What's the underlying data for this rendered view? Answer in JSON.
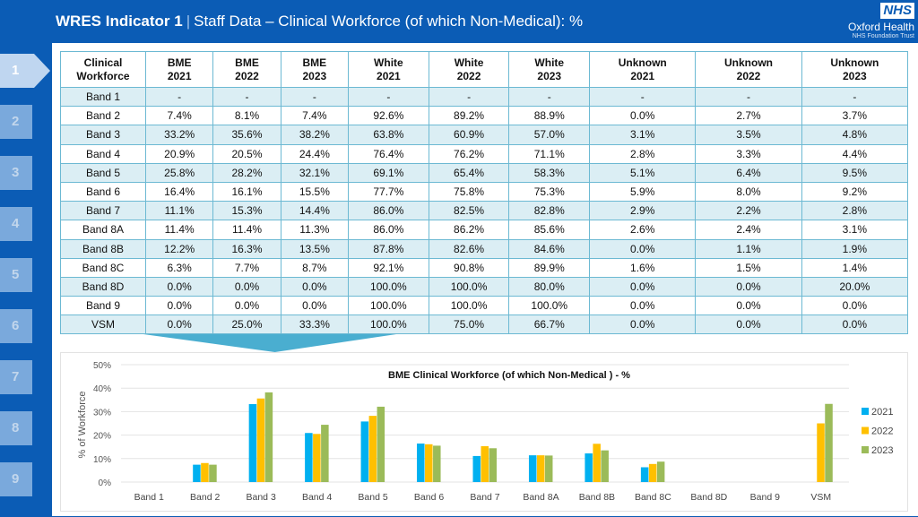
{
  "header": {
    "title_bold": "WRES Indicator 1",
    "separator": "|",
    "title": "Staff Data – Clinical Workforce (of which Non-Medical): %",
    "logo": {
      "nhs": "NHS",
      "org": "Oxford Health",
      "sub": "NHS Foundation Trust"
    }
  },
  "sidebar": {
    "items": [
      "1",
      "2",
      "3",
      "4",
      "5",
      "6",
      "7",
      "8",
      "9"
    ],
    "active": "1"
  },
  "table": {
    "headers": [
      [
        "Clinical",
        "Workforce"
      ],
      [
        "BME",
        "2021"
      ],
      [
        "BME",
        "2022"
      ],
      [
        "BME",
        "2023"
      ],
      [
        "White",
        "2021"
      ],
      [
        "White",
        "2022"
      ],
      [
        "White",
        "2023"
      ],
      [
        "Unknown",
        "2021"
      ],
      [
        "Unknown",
        "2022"
      ],
      [
        "Unknown",
        "2023"
      ]
    ],
    "rows": [
      [
        "Band 1",
        "-",
        "-",
        "-",
        "-",
        "-",
        "-",
        "-",
        "-",
        "-"
      ],
      [
        "Band 2",
        "7.4%",
        "8.1%",
        "7.4%",
        "92.6%",
        "89.2%",
        "88.9%",
        "0.0%",
        "2.7%",
        "3.7%"
      ],
      [
        "Band 3",
        "33.2%",
        "35.6%",
        "38.2%",
        "63.8%",
        "60.9%",
        "57.0%",
        "3.1%",
        "3.5%",
        "4.8%"
      ],
      [
        "Band 4",
        "20.9%",
        "20.5%",
        "24.4%",
        "76.4%",
        "76.2%",
        "71.1%",
        "2.8%",
        "3.3%",
        "4.4%"
      ],
      [
        "Band 5",
        "25.8%",
        "28.2%",
        "32.1%",
        "69.1%",
        "65.4%",
        "58.3%",
        "5.1%",
        "6.4%",
        "9.5%"
      ],
      [
        "Band 6",
        "16.4%",
        "16.1%",
        "15.5%",
        "77.7%",
        "75.8%",
        "75.3%",
        "5.9%",
        "8.0%",
        "9.2%"
      ],
      [
        "Band 7",
        "11.1%",
        "15.3%",
        "14.4%",
        "86.0%",
        "82.5%",
        "82.8%",
        "2.9%",
        "2.2%",
        "2.8%"
      ],
      [
        "Band 8A",
        "11.4%",
        "11.4%",
        "11.3%",
        "86.0%",
        "86.2%",
        "85.6%",
        "2.6%",
        "2.4%",
        "3.1%"
      ],
      [
        "Band 8B",
        "12.2%",
        "16.3%",
        "13.5%",
        "87.8%",
        "82.6%",
        "84.6%",
        "0.0%",
        "1.1%",
        "1.9%"
      ],
      [
        "Band 8C",
        "6.3%",
        "7.7%",
        "8.7%",
        "92.1%",
        "90.8%",
        "89.9%",
        "1.6%",
        "1.5%",
        "1.4%"
      ],
      [
        "Band 8D",
        "0.0%",
        "0.0%",
        "0.0%",
        "100.0%",
        "100.0%",
        "80.0%",
        "0.0%",
        "0.0%",
        "20.0%"
      ],
      [
        "Band 9",
        "0.0%",
        "0.0%",
        "0.0%",
        "100.0%",
        "100.0%",
        "100.0%",
        "0.0%",
        "0.0%",
        "0.0%"
      ],
      [
        "VSM",
        "0.0%",
        "25.0%",
        "33.3%",
        "100.0%",
        "75.0%",
        "66.7%",
        "0.0%",
        "0.0%",
        "0.0%"
      ]
    ]
  },
  "chart_data": {
    "type": "bar",
    "title": "BME Clinical Workforce (of which Non-Medical ) - %",
    "xlabel": "",
    "ylabel": "% of Workforce",
    "ylim": [
      0,
      50
    ],
    "yticks": [
      "0%",
      "10%",
      "20%",
      "30%",
      "40%",
      "50%"
    ],
    "grid": true,
    "legend": "right",
    "categories": [
      "Band 1",
      "Band 2",
      "Band 3",
      "Band 4",
      "Band 5",
      "Band 6",
      "Band 7",
      "Band 8A",
      "Band 8B",
      "Band 8C",
      "Band 8D",
      "Band 9",
      "VSM"
    ],
    "series": [
      {
        "name": "2021",
        "color": "#00b0f0",
        "values": [
          0,
          7.4,
          33.2,
          20.9,
          25.8,
          16.4,
          11.1,
          11.4,
          12.2,
          6.3,
          0,
          0,
          0
        ]
      },
      {
        "name": "2022",
        "color": "#ffc000",
        "values": [
          0,
          8.1,
          35.6,
          20.5,
          28.2,
          16.1,
          15.3,
          11.4,
          16.3,
          7.7,
          0,
          0,
          25.0
        ]
      },
      {
        "name": "2023",
        "color": "#9bbb59",
        "values": [
          0,
          7.4,
          38.2,
          24.4,
          32.1,
          15.5,
          14.4,
          11.3,
          13.5,
          8.7,
          0,
          0,
          33.3
        ]
      }
    ]
  }
}
